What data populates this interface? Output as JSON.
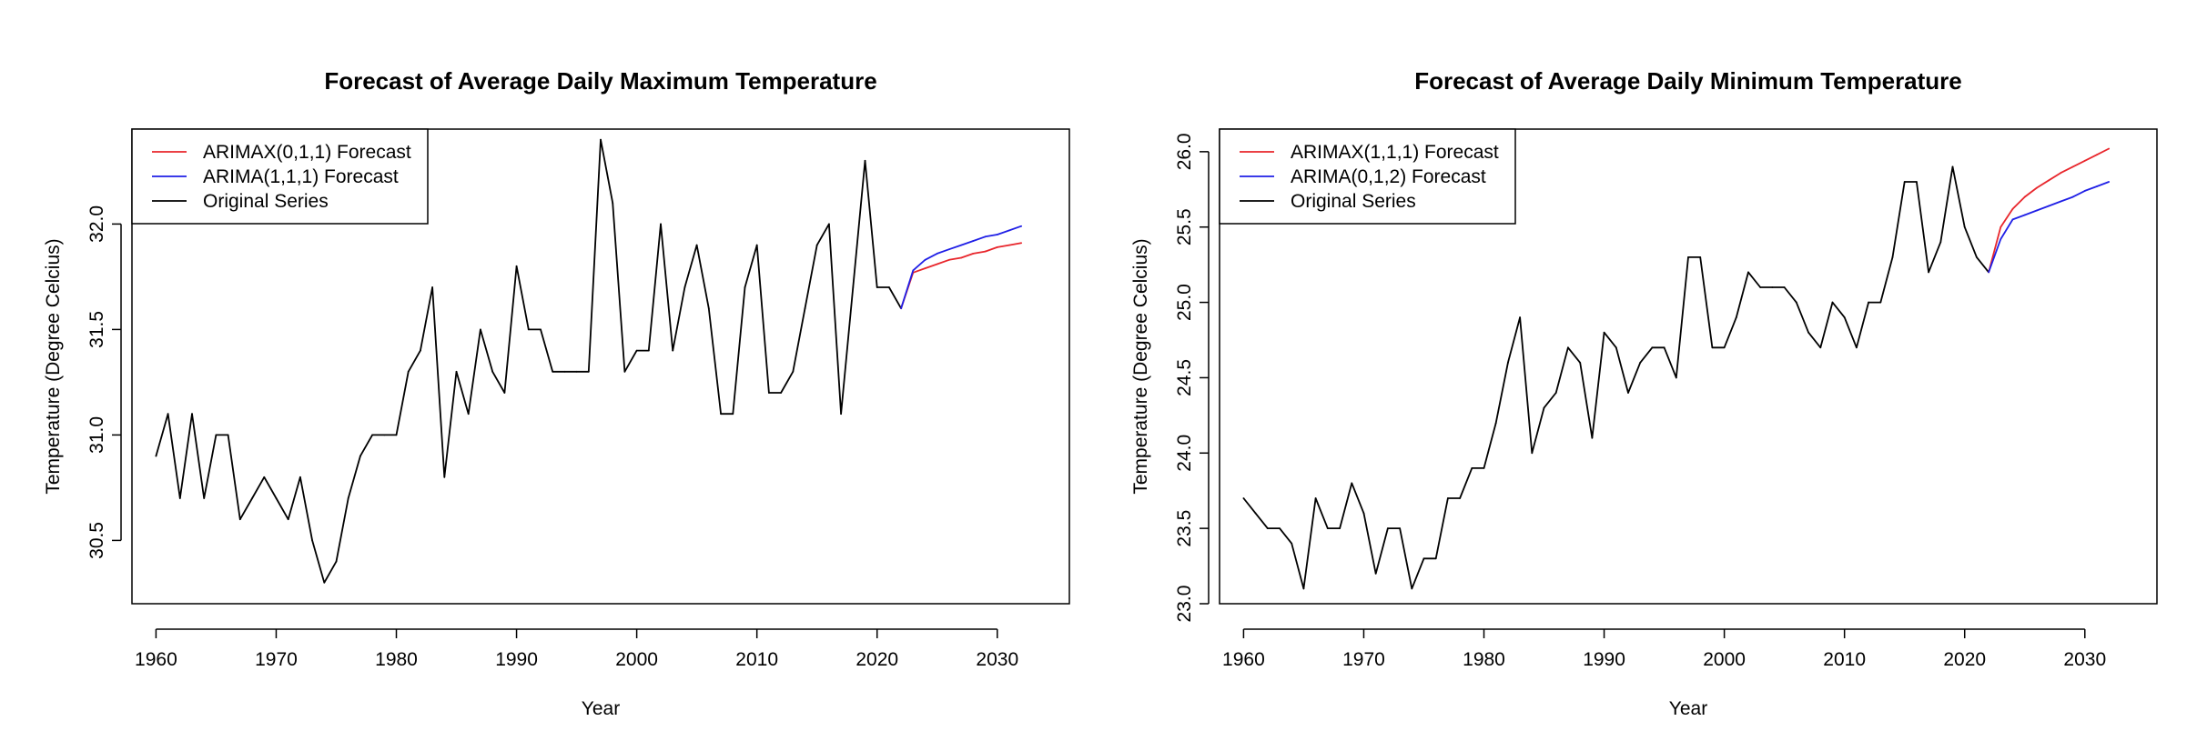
{
  "chart_data": [
    {
      "type": "line",
      "title": "Forecast of Average Daily Maximum Temperature",
      "xlabel": "Year",
      "ylabel": "Temperature (Degree Celcius)",
      "xlim": [
        1958,
        2036
      ],
      "ylim": [
        30.2,
        32.45
      ],
      "x_ticks": [
        1960,
        1970,
        1980,
        1990,
        2000,
        2010,
        2020,
        2030
      ],
      "y_ticks": [
        30.5,
        31.0,
        31.5,
        32.0
      ],
      "y_tick_labels": [
        "30.5",
        "31.0",
        "31.5",
        "32.0"
      ],
      "legend": {
        "position": "top-left",
        "entries": [
          "ARIMAX(0,1,1) Forecast",
          "ARIMA(1,1,1) Forecast",
          "Original Series"
        ],
        "colors": [
          "#e8262c",
          "#1f1fe6",
          "#000000"
        ]
      },
      "series": [
        {
          "name": "Original Series",
          "color": "#000000",
          "x": [
            1960,
            1961,
            1962,
            1963,
            1964,
            1965,
            1966,
            1967,
            1968,
            1969,
            1970,
            1971,
            1972,
            1973,
            1974,
            1975,
            1976,
            1977,
            1978,
            1979,
            1980,
            1981,
            1982,
            1983,
            1984,
            1985,
            1986,
            1987,
            1988,
            1989,
            1990,
            1991,
            1992,
            1993,
            1994,
            1995,
            1996,
            1997,
            1998,
            1999,
            2000,
            2001,
            2002,
            2003,
            2004,
            2005,
            2006,
            2007,
            2008,
            2009,
            2010,
            2011,
            2012,
            2013,
            2014,
            2015,
            2016,
            2017,
            2018,
            2019,
            2020,
            2021,
            2022
          ],
          "y": [
            30.9,
            31.1,
            30.7,
            31.1,
            30.7,
            31.0,
            31.0,
            30.6,
            30.7,
            30.8,
            30.7,
            30.6,
            30.8,
            30.5,
            30.3,
            30.4,
            30.7,
            30.9,
            31.0,
            31.0,
            31.0,
            31.3,
            31.4,
            31.7,
            30.8,
            31.3,
            31.1,
            31.5,
            31.3,
            31.2,
            31.8,
            31.5,
            31.5,
            31.3,
            31.3,
            31.3,
            31.3,
            32.4,
            32.1,
            31.3,
            31.4,
            31.4,
            32.0,
            31.4,
            31.7,
            31.9,
            31.6,
            31.1,
            31.1,
            31.7,
            31.9,
            31.2,
            31.2,
            31.3,
            31.6,
            31.9,
            32.0,
            31.1,
            31.7,
            32.3,
            31.7,
            31.7,
            31.6
          ]
        },
        {
          "name": "ARIMAX(0,1,1) Forecast",
          "color": "#e8262c",
          "x": [
            2022,
            2023,
            2024,
            2025,
            2026,
            2027,
            2028,
            2029,
            2030,
            2031,
            2032
          ],
          "y": [
            31.6,
            31.77,
            31.79,
            31.81,
            31.83,
            31.84,
            31.86,
            31.87,
            31.89,
            31.9,
            31.91
          ]
        },
        {
          "name": "ARIMA(1,1,1) Forecast",
          "color": "#1f1fe6",
          "x": [
            2022,
            2023,
            2024,
            2025,
            2026,
            2027,
            2028,
            2029,
            2030,
            2031,
            2032
          ],
          "y": [
            31.6,
            31.78,
            31.83,
            31.86,
            31.88,
            31.9,
            31.92,
            31.94,
            31.95,
            31.97,
            31.99
          ]
        }
      ]
    },
    {
      "type": "line",
      "title": "Forecast of Average Daily Minimum Temperature",
      "xlabel": "Year",
      "ylabel": "Temperature (Degree Celcius)",
      "xlim": [
        1958,
        2036
      ],
      "ylim": [
        23.0,
        26.15
      ],
      "x_ticks": [
        1960,
        1970,
        1980,
        1990,
        2000,
        2010,
        2020,
        2030
      ],
      "y_ticks": [
        23.0,
        23.5,
        24.0,
        24.5,
        25.0,
        25.5,
        26.0
      ],
      "y_tick_labels": [
        "23.0",
        "23.5",
        "24.0",
        "24.5",
        "25.0",
        "25.5",
        "26.0"
      ],
      "legend": {
        "position": "top-left",
        "entries": [
          "ARIMAX(1,1,1) Forecast",
          "ARIMA(0,1,2) Forecast",
          "Original Series"
        ],
        "colors": [
          "#e8262c",
          "#1f1fe6",
          "#000000"
        ]
      },
      "series": [
        {
          "name": "Original Series",
          "color": "#000000",
          "x": [
            1960,
            1961,
            1962,
            1963,
            1964,
            1965,
            1966,
            1967,
            1968,
            1969,
            1970,
            1971,
            1972,
            1973,
            1974,
            1975,
            1976,
            1977,
            1978,
            1979,
            1980,
            1981,
            1982,
            1983,
            1984,
            1985,
            1986,
            1987,
            1988,
            1989,
            1990,
            1991,
            1992,
            1993,
            1994,
            1995,
            1996,
            1997,
            1998,
            1999,
            2000,
            2001,
            2002,
            2003,
            2004,
            2005,
            2006,
            2007,
            2008,
            2009,
            2010,
            2011,
            2012,
            2013,
            2014,
            2015,
            2016,
            2017,
            2018,
            2019,
            2020,
            2021,
            2022
          ],
          "y": [
            23.7,
            23.6,
            23.5,
            23.5,
            23.4,
            23.1,
            23.7,
            23.5,
            23.5,
            23.8,
            23.6,
            23.2,
            23.5,
            23.5,
            23.1,
            23.3,
            23.3,
            23.7,
            23.7,
            23.9,
            23.9,
            24.2,
            24.6,
            24.9,
            24.0,
            24.3,
            24.4,
            24.7,
            24.6,
            24.1,
            24.8,
            24.7,
            24.4,
            24.6,
            24.7,
            24.7,
            24.5,
            25.3,
            25.3,
            24.7,
            24.7,
            24.9,
            25.2,
            25.1,
            25.1,
            25.1,
            25.0,
            24.8,
            24.7,
            25.0,
            24.9,
            24.7,
            25.0,
            25.0,
            25.3,
            25.8,
            25.8,
            25.2,
            25.4,
            25.9,
            25.5,
            25.3,
            25.2
          ]
        },
        {
          "name": "ARIMAX(1,1,1) Forecast",
          "color": "#e8262c",
          "x": [
            2022,
            2023,
            2024,
            2025,
            2026,
            2027,
            2028,
            2029,
            2030,
            2031,
            2032
          ],
          "y": [
            25.2,
            25.5,
            25.62,
            25.7,
            25.76,
            25.81,
            25.86,
            25.9,
            25.94,
            25.98,
            26.02
          ]
        },
        {
          "name": "ARIMA(0,1,2) Forecast",
          "color": "#1f1fe6",
          "x": [
            2022,
            2023,
            2024,
            2025,
            2026,
            2027,
            2028,
            2029,
            2030,
            2031,
            2032
          ],
          "y": [
            25.2,
            25.42,
            25.55,
            25.58,
            25.61,
            25.64,
            25.67,
            25.7,
            25.74,
            25.77,
            25.8
          ]
        }
      ]
    }
  ]
}
